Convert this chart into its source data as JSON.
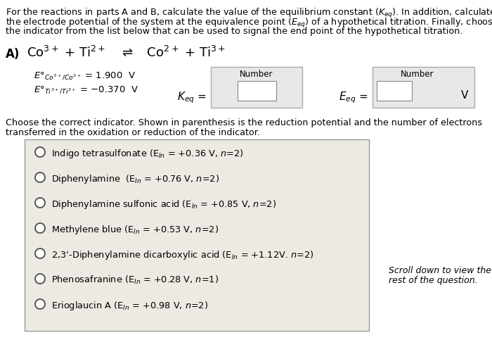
{
  "bg_color": "#ffffff",
  "header_lines": [
    "For the reactions in parts A and B, calculate the value of the equilibrium constant (K",
    "the electrode potential of the system at the equivalence point (E",
    "the indicator from the list below that can be used to signal the end point of the hypothetical titration."
  ],
  "box_bg": "#e8e8e6",
  "indicator_box_bg": "#edeae3",
  "indicators": [
    "Indigo tetrasulfonate (E$_{In}$ = +0.36 V, $n$=2)",
    "Diphenylamine  (E$_{In}$ = +0.76 V, $n$=2)",
    "Diphenylamine sulfonic acid (E$_{In}$ = +0.85 V, $n$=2)",
    "Methylene blue (E$_{In}$ = +0.53 V, $n$=2)",
    "2,3’-Diphenylamine dicarboxylic acid (E$_{In}$ = +1.12V. $n$=2)",
    "Phenosafranine (E$_{In}$ = +0.28 V, $n$=1)",
    "Erioglaucin A (E$_{In}$ = +0.98 V, $n$=2)"
  ],
  "scroll_text": [
    "Scroll down to view the",
    "rest of the question."
  ]
}
